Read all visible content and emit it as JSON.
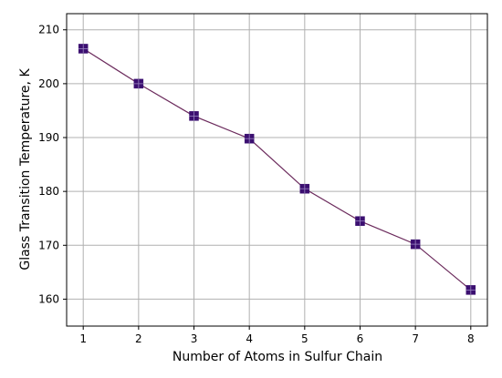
{
  "chart_data": {
    "type": "line",
    "title": "",
    "xlabel": "Number of Atoms in Sulfur Chain",
    "ylabel": "Glass Transition Temperature, K",
    "x": [
      1,
      2,
      3,
      4,
      5,
      6,
      7,
      8
    ],
    "series": [
      {
        "values": [
          206.5,
          200.0,
          194.0,
          189.8,
          180.5,
          174.5,
          170.2,
          161.7
        ],
        "line_color": "#6b2a5c",
        "marker_color": "#3b0f70",
        "marker": "square"
      }
    ],
    "xticks": [
      "1",
      "2",
      "3",
      "4",
      "5",
      "6",
      "7",
      "8"
    ],
    "yticks": [
      "160",
      "170",
      "180",
      "190",
      "200",
      "210"
    ],
    "xlim": [
      0.7,
      8.3
    ],
    "ylim": [
      155,
      213
    ],
    "grid": true,
    "legend": "none"
  }
}
